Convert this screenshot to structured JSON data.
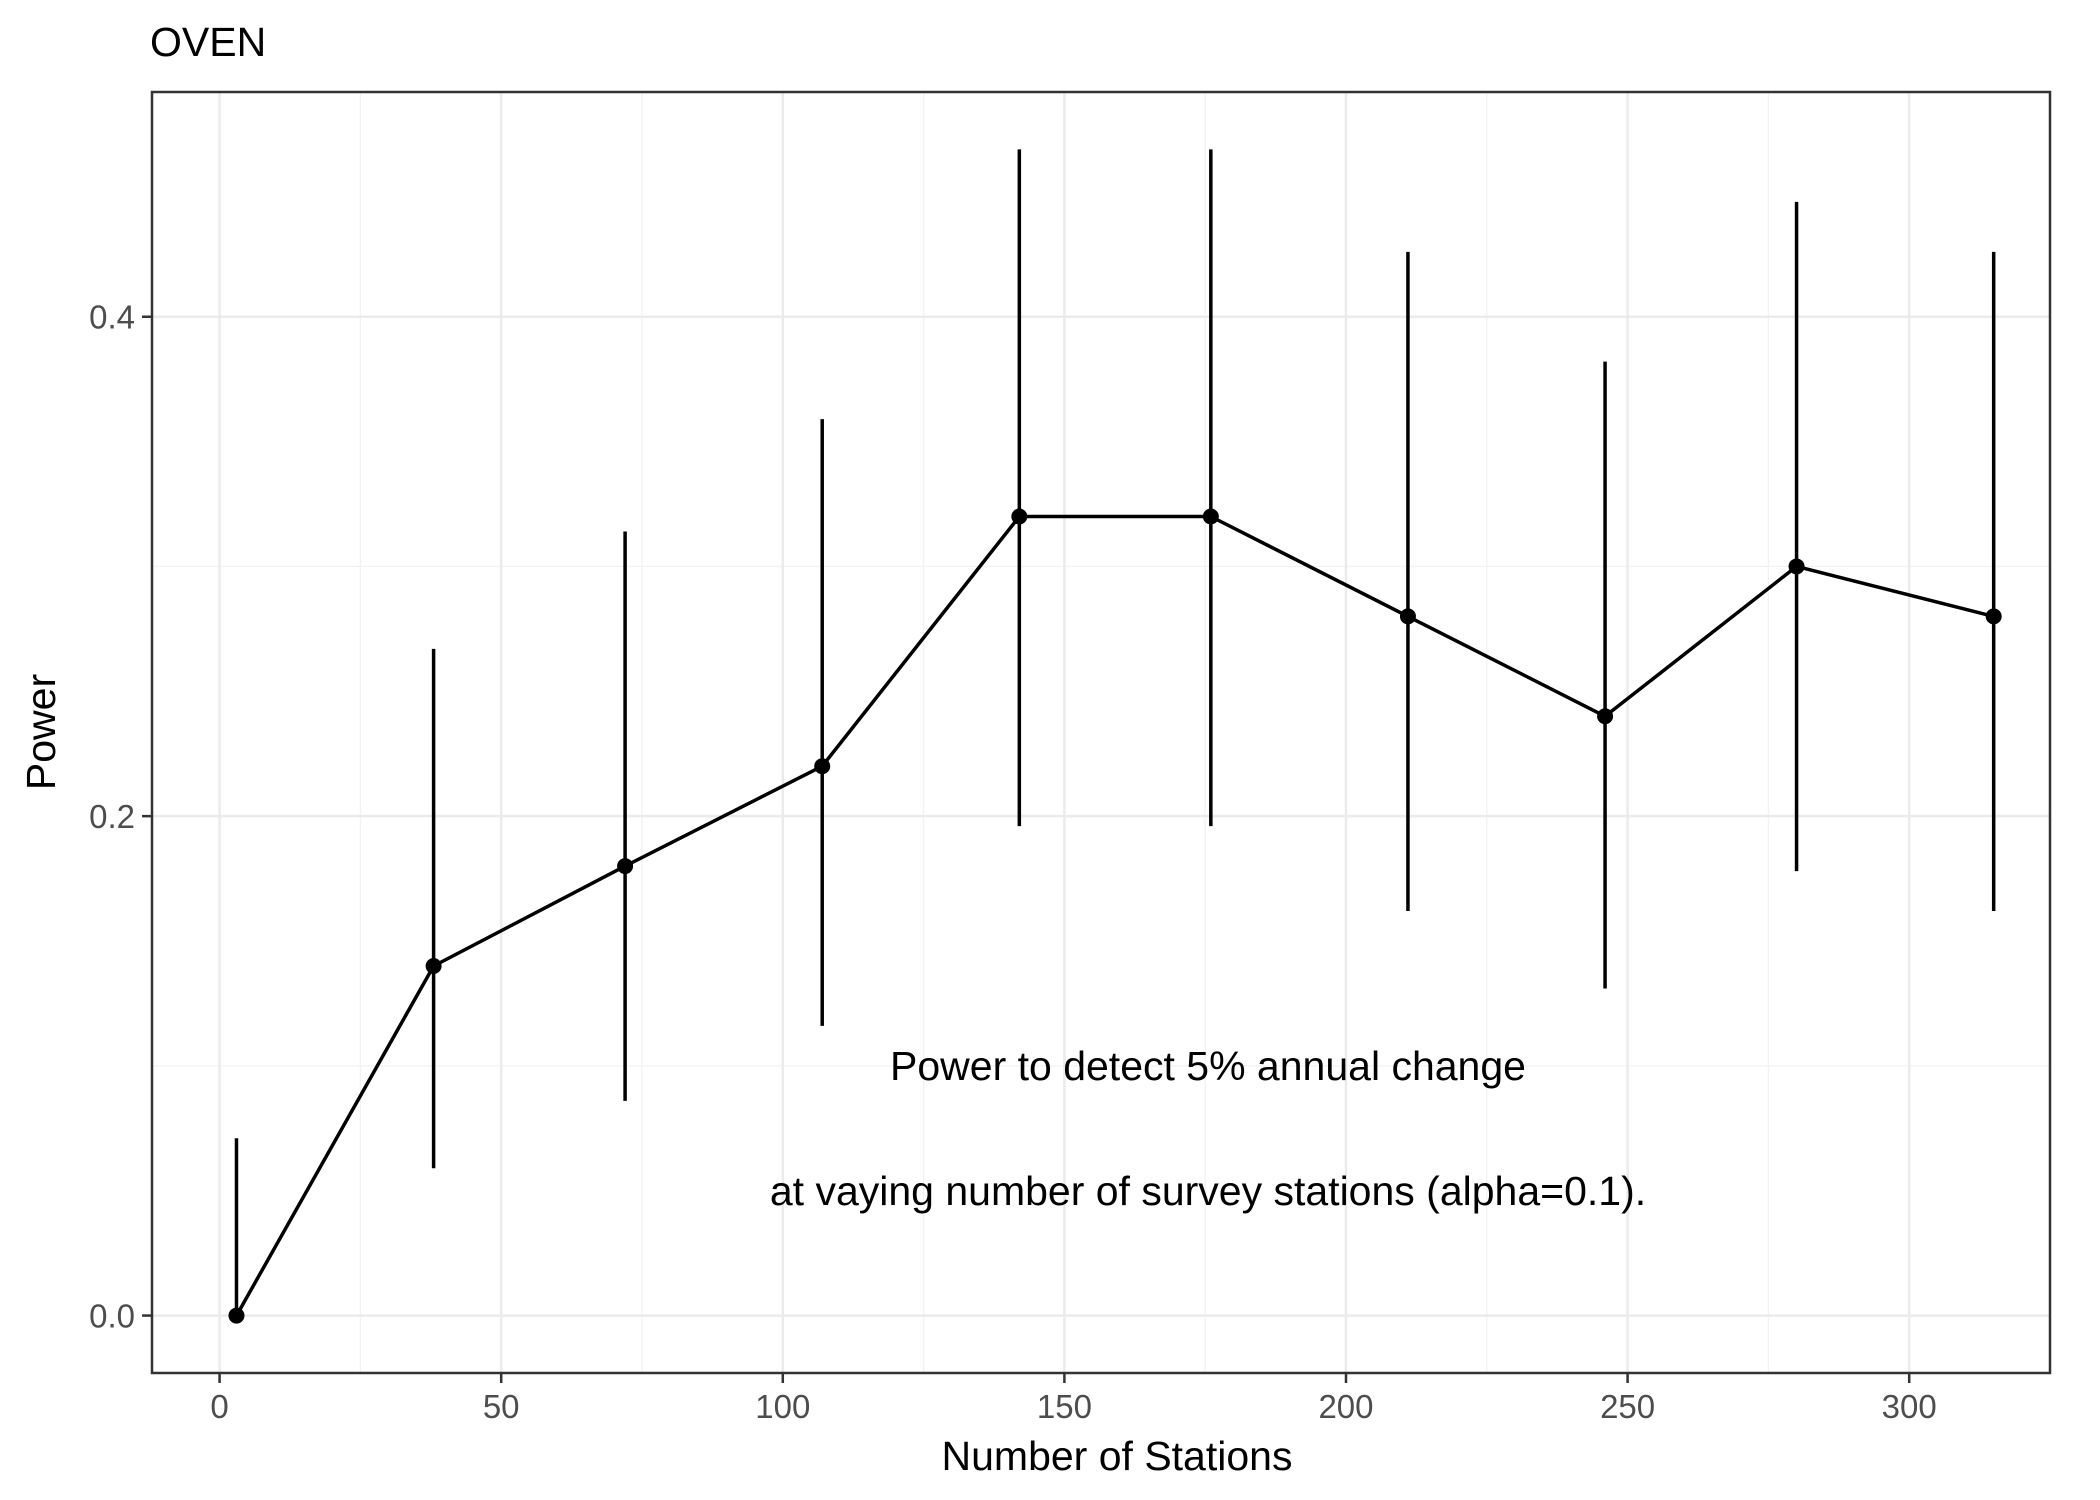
{
  "chart_data": {
    "type": "line",
    "title": "OVEN",
    "xlabel": "Number of Stations",
    "ylabel": "Power",
    "xlim": [
      -12,
      325
    ],
    "ylim": [
      -0.023,
      0.49
    ],
    "x_ticks": [
      0,
      50,
      100,
      150,
      200,
      250,
      300
    ],
    "y_ticks": [
      0.0,
      0.2,
      0.4
    ],
    "x_tick_labels": [
      "0",
      "50",
      "100",
      "150",
      "200",
      "250",
      "300"
    ],
    "y_tick_labels": [
      "0.0",
      "0.2",
      "0.4"
    ],
    "grid": true,
    "series": [
      {
        "x": [
          3,
          38,
          72,
          107,
          142,
          176,
          211,
          246,
          280,
          315
        ],
        "y": [
          0.0,
          0.14,
          0.18,
          0.22,
          0.32,
          0.32,
          0.28,
          0.24,
          0.3,
          0.28
        ],
        "lower": [
          0.0,
          0.059,
          0.086,
          0.116,
          0.196,
          0.196,
          0.162,
          0.131,
          0.178,
          0.162
        ],
        "upper": [
          0.071,
          0.267,
          0.314,
          0.359,
          0.467,
          0.467,
          0.426,
          0.382,
          0.446,
          0.426
        ]
      }
    ],
    "annotation": {
      "line1": "Power to detect 5% annual change",
      "line2": "at vaying number of survey stations (alpha=0.1)."
    },
    "colors": {
      "line": "#000000",
      "panel_border": "#333333",
      "major_grid": "#ebebeb",
      "minor_grid": "#f2f2f2",
      "tick_text": "#4d4d4d"
    }
  }
}
